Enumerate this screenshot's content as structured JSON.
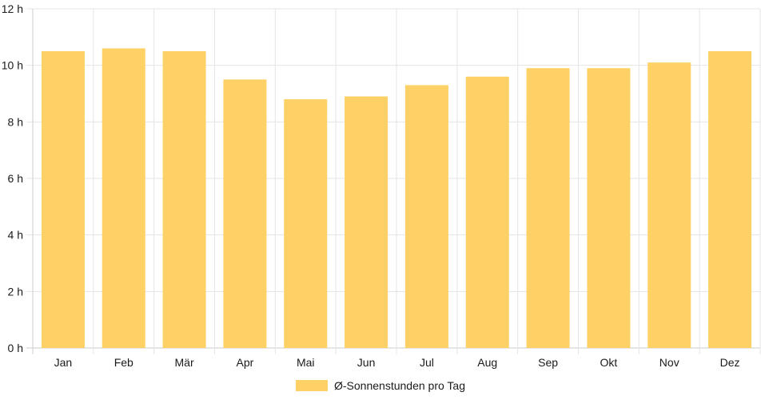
{
  "chart_data": {
    "type": "bar",
    "categories": [
      "Jan",
      "Feb",
      "Mär",
      "Apr",
      "Mai",
      "Jun",
      "Jul",
      "Aug",
      "Sep",
      "Okt",
      "Nov",
      "Dez"
    ],
    "series": [
      {
        "name": "Ø-Sonnenstunden pro Tag",
        "values": [
          10.5,
          10.6,
          10.5,
          9.5,
          8.8,
          8.9,
          9.3,
          9.6,
          9.9,
          9.9,
          10.1,
          10.5
        ],
        "color": "#fdd166"
      }
    ],
    "y_ticks": [
      "0 h",
      "2 h",
      "4 h",
      "6 h",
      "8 h",
      "10 h",
      "12 h"
    ],
    "ylim": [
      0,
      12
    ],
    "grid": true,
    "legend_position": "bottom",
    "gridline_color": "#e5e5e5",
    "axis_color": "#cccccc"
  }
}
